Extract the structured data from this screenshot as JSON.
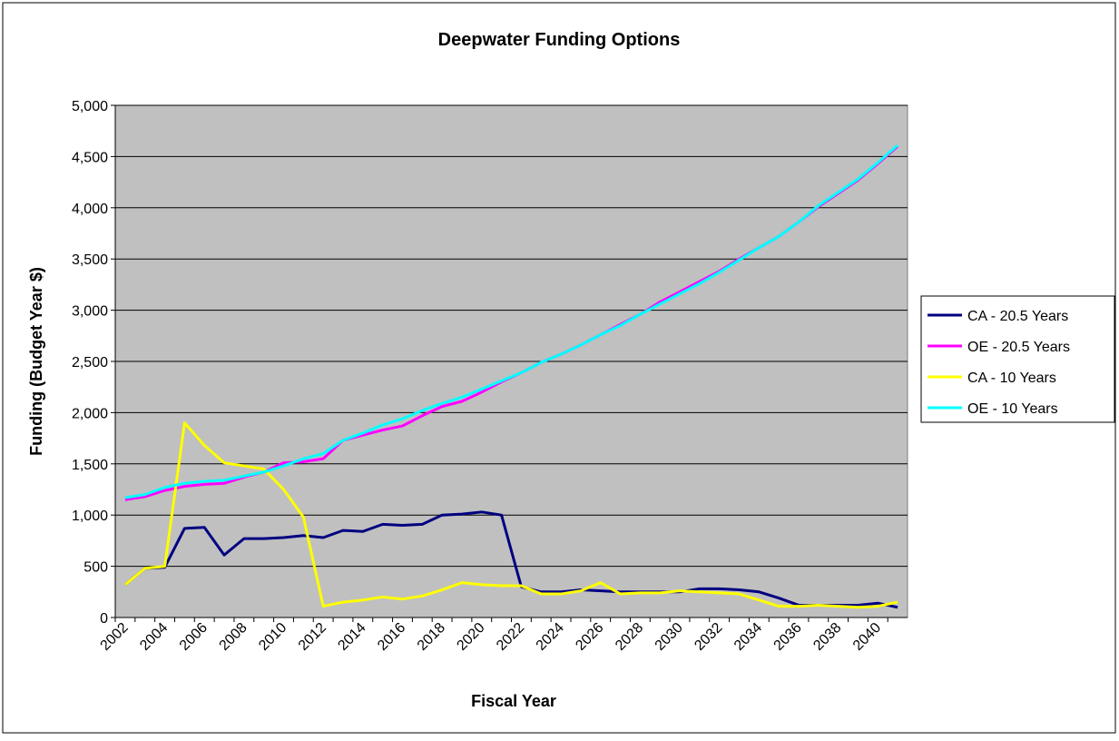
{
  "chart_data": {
    "type": "line",
    "title": "Deepwater Funding Options",
    "x_label": "Fiscal Year",
    "y_label": "Funding (Budget Year $)",
    "categories": [
      "2002",
      null,
      "2004",
      null,
      "2006",
      null,
      "2008",
      null,
      "2010",
      null,
      "2012",
      null,
      "2014",
      null,
      "2016",
      null,
      "2018",
      null,
      "2020",
      null,
      "2022",
      null,
      "2024",
      null,
      "2026",
      null,
      "2028",
      null,
      "2030",
      null,
      "2032",
      null,
      "2034",
      null,
      "2036",
      null,
      "2038",
      null,
      "2040",
      null
    ],
    "series": [
      {
        "name": "CA - 20.5 Years",
        "color": "#000080",
        "values": [
          320,
          480,
          490,
          870,
          880,
          610,
          770,
          770,
          780,
          800,
          780,
          850,
          840,
          910,
          900,
          910,
          1000,
          1010,
          1030,
          1000,
          300,
          250,
          250,
          270,
          260,
          250,
          250,
          250,
          250,
          280,
          280,
          270,
          250,
          190,
          120,
          120,
          120,
          120,
          140,
          100
        ]
      },
      {
        "name": "OE - 20.5 Years",
        "color": "#ff00ff",
        "values": [
          1150,
          1180,
          1240,
          1280,
          1300,
          1310,
          1370,
          1420,
          1510,
          1520,
          1550,
          1730,
          1780,
          1830,
          1870,
          1970,
          2060,
          2110,
          2200,
          2300,
          2390,
          2490,
          2570,
          2660,
          2760,
          2860,
          2960,
          3080,
          3180,
          3280,
          3380,
          3500,
          3610,
          3720,
          3860,
          4010,
          4140,
          4270,
          4430,
          4600
        ]
      },
      {
        "name": "CA - 10 Years",
        "color": "#ffff00",
        "values": [
          320,
          480,
          500,
          1900,
          1680,
          1510,
          1480,
          1450,
          1250,
          980,
          110,
          150,
          170,
          200,
          180,
          210,
          270,
          340,
          320,
          310,
          310,
          230,
          230,
          260,
          340,
          230,
          240,
          240,
          260,
          250,
          240,
          230,
          170,
          110,
          110,
          120,
          110,
          100,
          110,
          150
        ]
      },
      {
        "name": "OE - 10 Years",
        "color": "#00ffff",
        "values": [
          1170,
          1200,
          1270,
          1310,
          1330,
          1340,
          1380,
          1420,
          1480,
          1550,
          1600,
          1730,
          1800,
          1880,
          1940,
          2020,
          2090,
          2150,
          2230,
          2310,
          2390,
          2490,
          2570,
          2660,
          2760,
          2850,
          2960,
          3060,
          3160,
          3260,
          3370,
          3490,
          3610,
          3720,
          3860,
          4020,
          4150,
          4280,
          4440,
          4610
        ]
      }
    ],
    "ylim": [
      0,
      5000
    ],
    "yticks": [
      0,
      500,
      {
        "value": 1000,
        "label": "1,000"
      },
      {
        "value": 1500,
        "label": "1,500"
      },
      {
        "value": 2000,
        "label": "2,000"
      },
      {
        "value": 2500,
        "label": "2,500"
      },
      {
        "value": 3000,
        "label": "3,000"
      },
      {
        "value": 3500,
        "label": "3,500"
      },
      {
        "value": 4000,
        "label": "4,000"
      },
      {
        "value": 4500,
        "label": "4,500"
      },
      {
        "value": 5000,
        "label": "5,000"
      }
    ],
    "grid": true,
    "legend": "right"
  }
}
